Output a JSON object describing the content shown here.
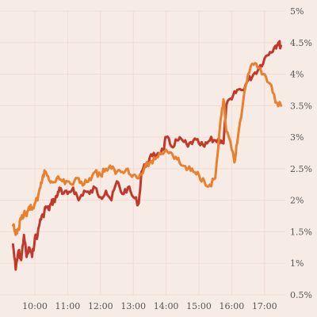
{
  "chart_data": {
    "type": "line",
    "x_ticks": [
      "10:00",
      "11:00",
      "12:00",
      "13:00",
      "14:00",
      "15:00",
      "16:00",
      "17:00"
    ],
    "y_ticks": [
      "0.5%",
      "1%",
      "1.5%",
      "2%",
      "2.5%",
      "3%",
      "3.5%",
      "4%",
      "4.5%",
      "5%"
    ],
    "y_axis_position": "right",
    "ylim": [
      0.5,
      5
    ],
    "grid": true,
    "series": [
      {
        "color": "#c0392b",
        "points": [
          [
            "09:20",
            1.3
          ],
          [
            "09:25",
            0.9
          ],
          [
            "09:30",
            1.2
          ],
          [
            "09:35",
            1.05
          ],
          [
            "09:40",
            1.45
          ],
          [
            "09:45",
            1.1
          ],
          [
            "09:50",
            1.25
          ],
          [
            "09:55",
            1.1
          ],
          [
            "10:00",
            1.4
          ],
          [
            "10:05",
            1.45
          ],
          [
            "10:10",
            1.7
          ],
          [
            "10:15",
            1.75
          ],
          [
            "10:20",
            1.9
          ],
          [
            "10:25",
            1.85
          ],
          [
            "10:30",
            1.95
          ],
          [
            "10:35",
            2.0
          ],
          [
            "10:40",
            2.05
          ],
          [
            "10:45",
            2.2
          ],
          [
            "10:50",
            2.1
          ],
          [
            "11:00",
            2.1
          ],
          [
            "11:10",
            2.2
          ],
          [
            "11:20",
            2.0
          ],
          [
            "11:30",
            2.15
          ],
          [
            "11:40",
            2.1
          ],
          [
            "11:50",
            2.2
          ],
          [
            "12:00",
            2.05
          ],
          [
            "12:10",
            2.15
          ],
          [
            "12:20",
            2.0
          ],
          [
            "12:30",
            2.3
          ],
          [
            "12:40",
            2.1
          ],
          [
            "12:50",
            2.2
          ],
          [
            "13:00",
            2.05
          ],
          [
            "13:10",
            1.95
          ],
          [
            "13:15",
            2.45
          ],
          [
            "13:25",
            2.6
          ],
          [
            "13:35",
            2.7
          ],
          [
            "13:45",
            2.75
          ],
          [
            "13:55",
            2.8
          ],
          [
            "14:00",
            3.0
          ],
          [
            "14:10",
            2.85
          ],
          [
            "14:20",
            2.95
          ],
          [
            "14:30",
            2.95
          ],
          [
            "14:40",
            2.85
          ],
          [
            "14:50",
            2.95
          ],
          [
            "15:00",
            2.9
          ],
          [
            "15:10",
            2.85
          ],
          [
            "15:20",
            2.95
          ],
          [
            "15:30",
            2.95
          ],
          [
            "15:40",
            2.95
          ],
          [
            "15:45",
            2.9
          ],
          [
            "15:50",
            3.5
          ],
          [
            "16:00",
            3.6
          ],
          [
            "16:10",
            3.75
          ],
          [
            "16:20",
            3.75
          ],
          [
            "16:30",
            3.9
          ],
          [
            "16:40",
            4.0
          ],
          [
            "16:50",
            4.1
          ],
          [
            "17:00",
            4.25
          ],
          [
            "17:10",
            4.35
          ],
          [
            "17:20",
            4.45
          ],
          [
            "17:25",
            4.5
          ],
          [
            "17:30",
            4.45
          ]
        ]
      },
      {
        "color": "#e8802e",
        "points": [
          [
            "09:20",
            1.6
          ],
          [
            "09:25",
            1.45
          ],
          [
            "09:30",
            1.55
          ],
          [
            "09:35",
            1.7
          ],
          [
            "09:40",
            1.8
          ],
          [
            "09:45",
            1.75
          ],
          [
            "09:50",
            1.9
          ],
          [
            "09:55",
            1.85
          ],
          [
            "10:00",
            1.95
          ],
          [
            "10:05",
            2.0
          ],
          [
            "10:10",
            2.2
          ],
          [
            "10:15",
            2.4
          ],
          [
            "10:20",
            2.45
          ],
          [
            "10:25",
            2.35
          ],
          [
            "10:30",
            2.3
          ],
          [
            "10:40",
            2.35
          ],
          [
            "10:50",
            2.3
          ],
          [
            "11:00",
            2.3
          ],
          [
            "11:10",
            2.25
          ],
          [
            "11:20",
            2.35
          ],
          [
            "11:30",
            2.25
          ],
          [
            "11:40",
            2.35
          ],
          [
            "11:50",
            2.45
          ],
          [
            "12:00",
            2.4
          ],
          [
            "12:10",
            2.5
          ],
          [
            "12:20",
            2.5
          ],
          [
            "12:30",
            2.45
          ],
          [
            "12:40",
            2.45
          ],
          [
            "12:50",
            2.5
          ],
          [
            "13:00",
            2.4
          ],
          [
            "13:10",
            2.35
          ],
          [
            "13:20",
            2.5
          ],
          [
            "13:30",
            2.6
          ],
          [
            "13:40",
            2.65
          ],
          [
            "13:50",
            2.75
          ],
          [
            "14:00",
            2.8
          ],
          [
            "14:10",
            2.75
          ],
          [
            "14:20",
            2.65
          ],
          [
            "14:30",
            2.55
          ],
          [
            "14:40",
            2.5
          ],
          [
            "14:50",
            2.45
          ],
          [
            "15:00",
            2.4
          ],
          [
            "15:10",
            2.3
          ],
          [
            "15:20",
            2.25
          ],
          [
            "15:30",
            2.35
          ],
          [
            "15:40",
            3.3
          ],
          [
            "15:45",
            3.6
          ],
          [
            "15:50",
            3.1
          ],
          [
            "16:00",
            2.8
          ],
          [
            "16:05",
            2.6
          ],
          [
            "16:10",
            2.9
          ],
          [
            "16:20",
            3.5
          ],
          [
            "16:30",
            4.0
          ],
          [
            "16:40",
            4.15
          ],
          [
            "16:50",
            4.1
          ],
          [
            "17:00",
            4.0
          ],
          [
            "17:10",
            3.85
          ],
          [
            "17:20",
            3.55
          ],
          [
            "17:30",
            3.5
          ]
        ]
      }
    ]
  }
}
